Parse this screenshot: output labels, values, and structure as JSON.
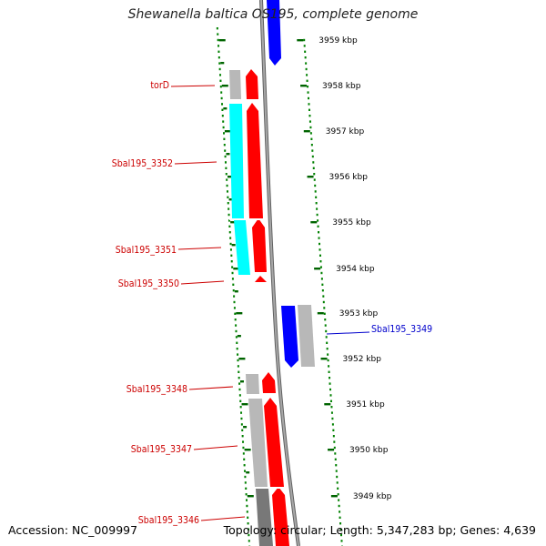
{
  "title": "Shewanella baltica OS195, complete genome",
  "footer": {
    "accession": "Accession: NC_009997",
    "summary": "Topology: circular; Length: 5,347,283 bp; Genes: 4,639"
  },
  "colors": {
    "forward_gene": "#ff0000",
    "reverse_gene": "#0000ff",
    "rna_gene": "#00ffff",
    "label_forward": "#cc0000",
    "label_reverse": "#0000cc",
    "backbone": "#808080",
    "dots": "#008000",
    "ticks": "#006400",
    "gray_box": "#b8b8b8",
    "dark_gray_box": "#787878"
  },
  "kbp_labels": [
    "3959 kbp",
    "3958 kbp",
    "3957 kbp",
    "3956 kbp",
    "3955 kbp",
    "3954 kbp",
    "3953 kbp",
    "3952 kbp",
    "3951 kbp",
    "3950 kbp",
    "3949 kbp"
  ],
  "gene_labels": [
    {
      "text": "torD",
      "strand": "forward"
    },
    {
      "text": "Sbal195_3352",
      "strand": "forward"
    },
    {
      "text": "Sbal195_3351",
      "strand": "forward"
    },
    {
      "text": "Sbal195_3350",
      "strand": "forward"
    },
    {
      "text": "Sbal195_3349",
      "strand": "reverse"
    },
    {
      "text": "Sbal195_3348",
      "strand": "forward"
    },
    {
      "text": "Sbal195_3347",
      "strand": "forward"
    },
    {
      "text": "Sbal195_3346",
      "strand": "forward"
    }
  ]
}
